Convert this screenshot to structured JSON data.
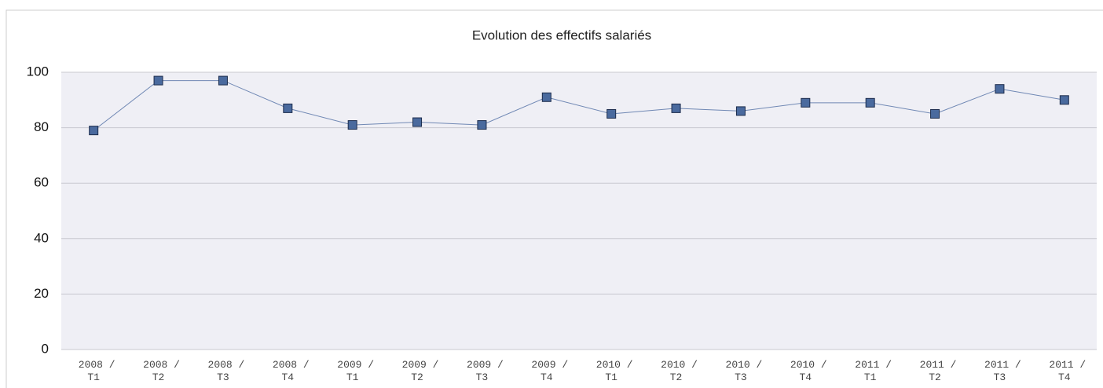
{
  "chart_data": {
    "type": "line",
    "title": "Evolution des effectifs salariés",
    "categories": [
      "2008 / T1",
      "2008 / T2",
      "2008 / T3",
      "2008 / T4",
      "2009 / T1",
      "2009 / T2",
      "2009 / T3",
      "2009 / T4",
      "2010 / T1",
      "2010 / T2",
      "2010 / T3",
      "2010 / T4",
      "2011 / T1",
      "2011 / T2",
      "2011 / T3",
      "2011 / T4"
    ],
    "values": [
      79,
      97,
      97,
      87,
      81,
      82,
      81,
      91,
      85,
      87,
      86,
      89,
      89,
      85,
      94,
      90
    ],
    "color": "#4a6a9e",
    "ylim": [
      0,
      100
    ],
    "yticks": [
      0,
      20,
      40,
      60,
      80,
      100
    ],
    "grid": true
  }
}
